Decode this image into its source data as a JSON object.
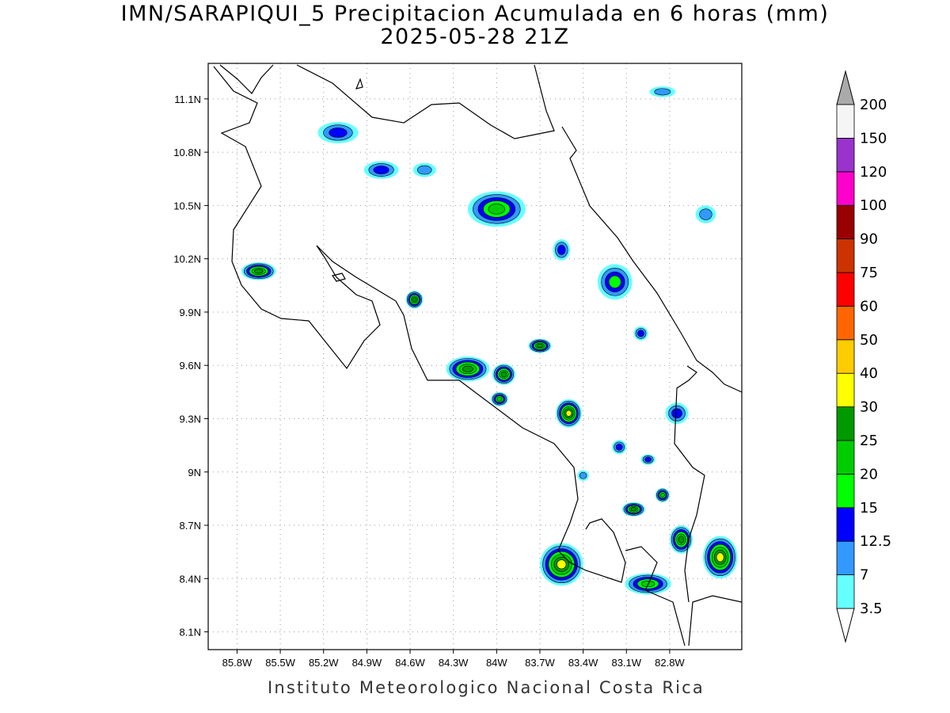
{
  "header": {
    "title": "IMN/SARAPIQUI_5 Precipitacion Acumulada en 6 horas (mm)",
    "subtitle": "2025-05-28 21Z"
  },
  "footer": {
    "credit": "Instituto Meteorologico Nacional Costa Rica"
  },
  "map": {
    "lon_range": [
      -86.0,
      -82.3
    ],
    "lat_range": [
      8.0,
      11.3
    ],
    "lon_ticks": [
      {
        "value": -85.8,
        "label": "85.8W"
      },
      {
        "value": -85.5,
        "label": "85.5W"
      },
      {
        "value": -85.2,
        "label": "85.2W"
      },
      {
        "value": -84.9,
        "label": "84.9W"
      },
      {
        "value": -84.6,
        "label": "84.6W"
      },
      {
        "value": -84.3,
        "label": "84.3W"
      },
      {
        "value": -84.0,
        "label": "84W"
      },
      {
        "value": -83.7,
        "label": "83.7W"
      },
      {
        "value": -83.4,
        "label": "83.4W"
      },
      {
        "value": -83.1,
        "label": "83.1W"
      },
      {
        "value": -82.8,
        "label": "82.8W"
      }
    ],
    "lat_ticks": [
      {
        "value": 11.1,
        "label": "11.1N"
      },
      {
        "value": 10.8,
        "label": "10.8N"
      },
      {
        "value": 10.5,
        "label": "10.5N"
      },
      {
        "value": 10.2,
        "label": "10.2N"
      },
      {
        "value": 9.9,
        "label": "9.9N"
      },
      {
        "value": 9.6,
        "label": "9.6N"
      },
      {
        "value": 9.3,
        "label": "9.3N"
      },
      {
        "value": 9.0,
        "label": "9N"
      },
      {
        "value": 8.7,
        "label": "8.7N"
      },
      {
        "value": 8.4,
        "label": "8.4N"
      },
      {
        "value": 8.1,
        "label": "8.1N"
      }
    ],
    "grid": "dotted"
  },
  "colorbar": {
    "levels": [
      "3.5",
      "7",
      "12.5",
      "15",
      "20",
      "25",
      "30",
      "40",
      "50",
      "60",
      "75",
      "90",
      "100",
      "120",
      "150",
      "200"
    ],
    "colors": [
      "#66ffff",
      "#3399ff",
      "#0000ff",
      "#00ff00",
      "#00cc00",
      "#009900",
      "#ffff00",
      "#ffcc00",
      "#ff6600",
      "#ff0000",
      "#cc3300",
      "#990000",
      "#ff00cc",
      "#9933cc",
      "#f5f5f5",
      "#aaaaaa"
    ],
    "over_color": "#aaaaaa",
    "under_color": "#ffffff"
  },
  "precip_cells": [
    {
      "lon": -85.65,
      "lat": 10.13,
      "r": [
        0.12,
        0.05
      ],
      "max": 25
    },
    {
      "lon": -84.57,
      "lat": 9.97,
      "r": [
        0.06,
        0.05
      ],
      "max": 25
    },
    {
      "lon": -85.1,
      "lat": 10.91,
      "r": [
        0.14,
        0.06
      ],
      "max": 12.5
    },
    {
      "lon": -84.8,
      "lat": 10.7,
      "r": [
        0.12,
        0.05
      ],
      "max": 12.5
    },
    {
      "lon": -84.5,
      "lat": 10.7,
      "r": [
        0.08,
        0.04
      ],
      "max": 7
    },
    {
      "lon": -84.0,
      "lat": 10.48,
      "r": [
        0.2,
        0.1
      ],
      "max": 20
    },
    {
      "lon": -83.55,
      "lat": 10.25,
      "r": [
        0.06,
        0.06
      ],
      "max": 12.5
    },
    {
      "lon": -83.18,
      "lat": 10.07,
      "r": [
        0.12,
        0.1
      ],
      "max": 15
    },
    {
      "lon": -84.2,
      "lat": 9.58,
      "r": [
        0.15,
        0.07
      ],
      "max": 25
    },
    {
      "lon": -83.95,
      "lat": 9.55,
      "r": [
        0.08,
        0.06
      ],
      "max": 25
    },
    {
      "lon": -83.98,
      "lat": 9.41,
      "r": [
        0.06,
        0.04
      ],
      "max": 20
    },
    {
      "lon": -83.7,
      "lat": 9.71,
      "r": [
        0.08,
        0.04
      ],
      "max": 25
    },
    {
      "lon": -83.5,
      "lat": 9.33,
      "r": [
        0.09,
        0.08
      ],
      "max": 30
    },
    {
      "lon": -83.55,
      "lat": 8.48,
      "r": [
        0.15,
        0.12
      ],
      "max": 30
    },
    {
      "lon": -83.05,
      "lat": 8.79,
      "r": [
        0.08,
        0.04
      ],
      "max": 25
    },
    {
      "lon": -82.95,
      "lat": 8.37,
      "r": [
        0.16,
        0.06
      ],
      "max": 20
    },
    {
      "lon": -82.72,
      "lat": 8.62,
      "r": [
        0.08,
        0.08
      ],
      "max": 25
    },
    {
      "lon": -82.45,
      "lat": 8.52,
      "r": [
        0.12,
        0.12
      ],
      "max": 30
    },
    {
      "lon": -82.85,
      "lat": 8.87,
      "r": [
        0.05,
        0.04
      ],
      "max": 20
    },
    {
      "lon": -83.15,
      "lat": 9.14,
      "r": [
        0.05,
        0.04
      ],
      "max": 12.5
    },
    {
      "lon": -82.95,
      "lat": 9.07,
      "r": [
        0.05,
        0.03
      ],
      "max": 12.5
    },
    {
      "lon": -82.75,
      "lat": 9.33,
      "r": [
        0.08,
        0.06
      ],
      "max": 12.5
    },
    {
      "lon": -83.0,
      "lat": 9.78,
      "r": [
        0.05,
        0.04
      ],
      "max": 12.5
    },
    {
      "lon": -82.55,
      "lat": 10.45,
      "r": [
        0.07,
        0.05
      ],
      "max": 7
    },
    {
      "lon": -82.85,
      "lat": 11.14,
      "r": [
        0.09,
        0.03
      ],
      "max": 7
    },
    {
      "lon": -83.4,
      "lat": 8.98,
      "r": [
        0.04,
        0.03
      ],
      "max": 7
    }
  ]
}
